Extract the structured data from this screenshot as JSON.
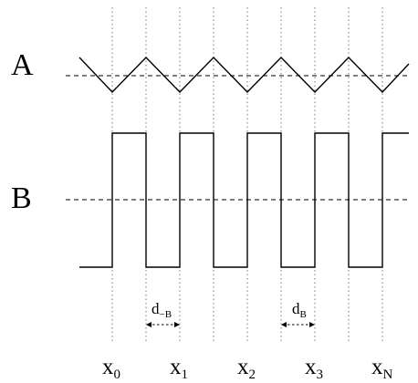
{
  "labels": {
    "signal_a": "A",
    "signal_b": "B"
  },
  "x_axis": [
    {
      "base": "x",
      "sub": "0"
    },
    {
      "base": "x",
      "sub": "1"
    },
    {
      "base": "x",
      "sub": "2"
    },
    {
      "base": "x",
      "sub": "3"
    },
    {
      "base": "x",
      "sub": "N"
    }
  ],
  "dimensions": [
    {
      "base": "d",
      "sub": "−B"
    },
    {
      "base": "d",
      "sub": "B"
    }
  ]
}
